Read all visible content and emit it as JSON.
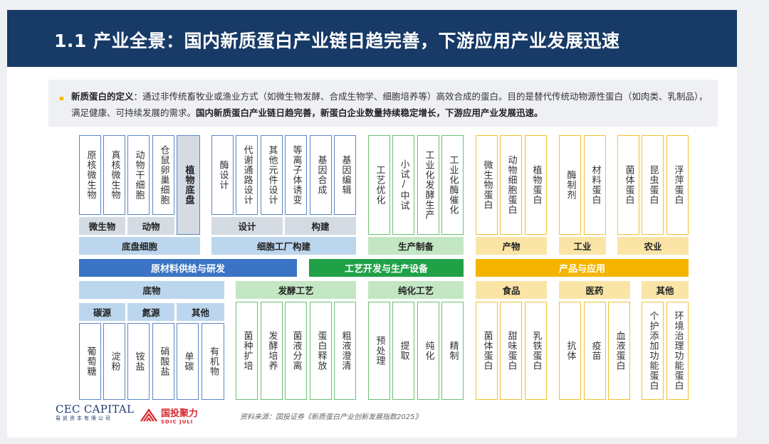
{
  "title": "1.1 产业全景：国内新质蛋白产业链日趋完善，下游应用产业发展迅速",
  "definition": {
    "term": "新质蛋白的定义",
    "body": "：通过非传统畜牧业或渔业方式（如微生物发酵、合成生物学、细胞培养等）高效合成的蛋白。目的是替代传统动物源性蛋白（如肉类、乳制品），满足健康、可持续发展的需求。",
    "highlight": "国内新质蛋白产业链日趋完善，新蛋白企业数量持续稳定增长，下游应用产业发展迅速。"
  },
  "sections": {
    "raw_materials": "原材料供给与研发",
    "process": "工艺开发与生产设备",
    "products": "产品与应用"
  },
  "top": {
    "chassis_items": [
      "原核微生物",
      "真核微生物",
      "动物干细胞",
      "仓鼠卵巢细胞",
      "植物底盘"
    ],
    "microbe": "微生物",
    "animal": "动物",
    "chassis_cell": "底盘细胞",
    "factory_items": [
      "酶设计",
      "代谢通路设计",
      "其他元件设计",
      "等离子体诱变",
      "基因合成",
      "基因编辑"
    ],
    "design": "设计",
    "build": "构建",
    "factory": "细胞工厂构建",
    "production_items": [
      "工艺优化",
      "小试/中试",
      "工业化发酵生产",
      "工业化酶催化"
    ],
    "production": "生产制备",
    "product_items": [
      "微生物蛋白",
      "动物细胞蛋白",
      "植物蛋白"
    ],
    "product": "产物",
    "industry_items": [
      "酶制剂",
      "材料蛋白"
    ],
    "industry": "工业",
    "agri_items": [
      "菌体蛋白",
      "昆虫蛋白",
      "浮萍蛋白"
    ],
    "agriculture": "农业"
  },
  "bottom": {
    "substrate": "底物",
    "carbon": "碳源",
    "nitrogen": "氮源",
    "other": "其他",
    "substrate_items": [
      "葡萄糖",
      "淀粉",
      "铵盐",
      "硝酸盐",
      "单碳",
      "有机物"
    ],
    "fermentation": "发酵工艺",
    "fermentation_items": [
      "菌种扩培",
      "发酵培养",
      "菌液分离",
      "蛋白释放",
      "粗液澄清"
    ],
    "purification": "纯化工艺",
    "purification_items": [
      "预处理",
      "提取",
      "纯化",
      "精制"
    ],
    "food": "食品",
    "food_items": [
      "菌体蛋白",
      "甜味蛋白",
      "乳铁蛋白"
    ],
    "medicine": "医药",
    "medicine_items": [
      "抗体",
      "疫苗",
      "血液蛋白"
    ],
    "others": "其他",
    "others_items": [
      "个护添加功能蛋白",
      "环境治理功能蛋白"
    ]
  },
  "source": "资料来源：国投证券《新质蛋白产业创新发展指数2025》",
  "logos": {
    "cec_main": "CEC CAPITAL",
    "cec_sub": "易凯资本有限公司",
    "sdic_main": "国投聚力",
    "sdic_sub": "SDIC JULI"
  },
  "colors": {
    "title_bg": "#173a66",
    "blue_bar": "#3b74c4",
    "green_bar": "#21a147",
    "yellow_bar": "#f4b400",
    "sdic_red": "#d7282f"
  }
}
